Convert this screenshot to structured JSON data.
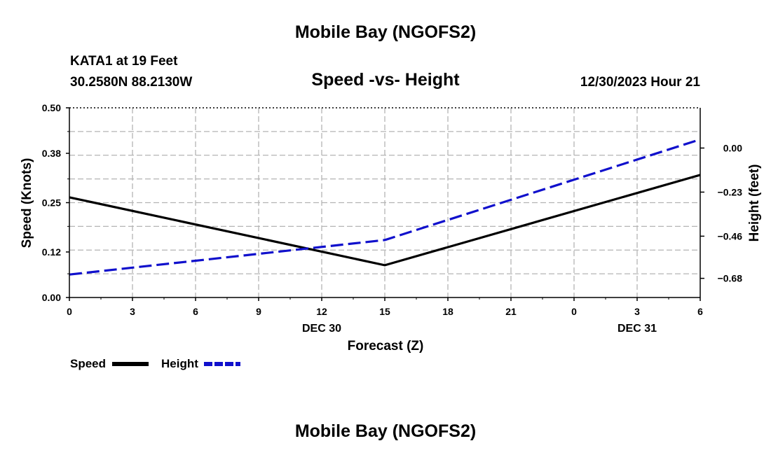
{
  "page": {
    "title_top": "Mobile Bay (NGOFS2)",
    "title_bottom": "Mobile Bay (NGOFS2)",
    "station": "KATA1 at 19 Feet",
    "coords": "30.2580N  88.2130W",
    "subtitle": "Speed -vs- Height",
    "datetime": "12/30/2023 Hour 21"
  },
  "legend": {
    "speed_label": "Speed",
    "height_label": "Height"
  },
  "colors": {
    "speed": "#000000",
    "height": "#1010cc",
    "grid": "#b4b4b4"
  },
  "chart_data": {
    "type": "line",
    "title": "Speed -vs- Height",
    "xlabel": "Forecast (Z)",
    "ylabel": "Speed (Knots)",
    "y2label": "Height (feet)",
    "x": [
      0,
      3,
      6,
      9,
      12,
      15,
      18,
      21,
      24,
      27,
      30
    ],
    "x_tick_labels": [
      "0",
      "3",
      "6",
      "9",
      "12",
      "15",
      "18",
      "21",
      "0",
      "3",
      "6"
    ],
    "date_labels": [
      {
        "at": 12,
        "text": "DEC 30"
      },
      {
        "at": 27,
        "text": "DEC 31"
      }
    ],
    "xlim": [
      0,
      30
    ],
    "ylim": [
      0,
      0.5
    ],
    "y_ticks": [
      0.0,
      0.12,
      0.25,
      0.38,
      0.5
    ],
    "y_tick_labels": [
      "0.00",
      "0.12",
      "0.25",
      "0.38",
      "0.50"
    ],
    "y2lim": [
      -0.78,
      0.21
    ],
    "y2_ticks": [
      -0.68,
      -0.46,
      -0.23,
      0.0
    ],
    "y2_tick_labels": [
      "−0.68",
      "−0.46",
      "−0.23",
      "0.00"
    ],
    "grid": true,
    "legend_position": "bottom-left",
    "series": [
      {
        "name": "Speed",
        "axis": "left",
        "style": "solid",
        "points": [
          [
            0,
            0.264
          ],
          [
            15,
            0.085
          ],
          [
            30,
            0.323
          ]
        ]
      },
      {
        "name": "Height",
        "axis": "right",
        "style": "dashed",
        "points": [
          [
            0,
            -0.66
          ],
          [
            15,
            -0.48
          ],
          [
            30,
            0.045
          ]
        ]
      }
    ]
  }
}
